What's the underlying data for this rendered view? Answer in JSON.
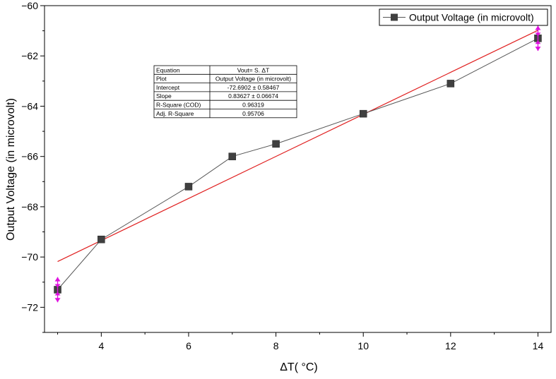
{
  "chart_data": {
    "type": "line",
    "xlabel": "ΔT( °C)",
    "ylabel": "Output Voltage (in microvolt)",
    "xlim": [
      2.7,
      14.3
    ],
    "ylim": [
      -73,
      -60
    ],
    "x_ticks": [
      4,
      6,
      8,
      10,
      12,
      14
    ],
    "x_minor_ticks": [
      3,
      5,
      7,
      9,
      11,
      13
    ],
    "y_ticks": [
      -72,
      -70,
      -68,
      -66,
      -64,
      -62,
      -60
    ],
    "y_minor_ticks": [
      -73,
      -71,
      -69,
      -67,
      -65,
      -63,
      -61
    ],
    "grid": false,
    "legend_position": "top-right",
    "series": [
      {
        "name": "Output Voltage (in microvolt)",
        "color": "#555555",
        "marker_color": "#404040",
        "marker": "square",
        "x": [
          3,
          4,
          6,
          7,
          8,
          10,
          12,
          14
        ],
        "y": [
          -71.3,
          -69.3,
          -67.2,
          -66.0,
          -65.5,
          -64.3,
          -63.1,
          -61.3
        ]
      }
    ],
    "fit_line": {
      "color": "#e02020",
      "x": [
        3,
        14
      ],
      "y": [
        -70.18,
        -60.98
      ]
    },
    "error_bars": {
      "color": "#e010e0",
      "points": [
        {
          "x": 3,
          "y": -71.3,
          "err": 0.5
        },
        {
          "x": 14,
          "y": -61.3,
          "err": 0.5
        }
      ]
    },
    "stats_table": {
      "rows": [
        [
          "Equation",
          "Vout= S. ΔT"
        ],
        [
          "Plot",
          "Output Voltage (in microvolt)"
        ],
        [
          "Intercept",
          "-72.6902 ± 0.58467"
        ],
        [
          "Slope",
          "0.83627 ± 0.06674"
        ],
        [
          "R-Square (COD)",
          "0.96319"
        ],
        [
          "Adj. R-Square",
          "0.95706"
        ]
      ]
    }
  }
}
